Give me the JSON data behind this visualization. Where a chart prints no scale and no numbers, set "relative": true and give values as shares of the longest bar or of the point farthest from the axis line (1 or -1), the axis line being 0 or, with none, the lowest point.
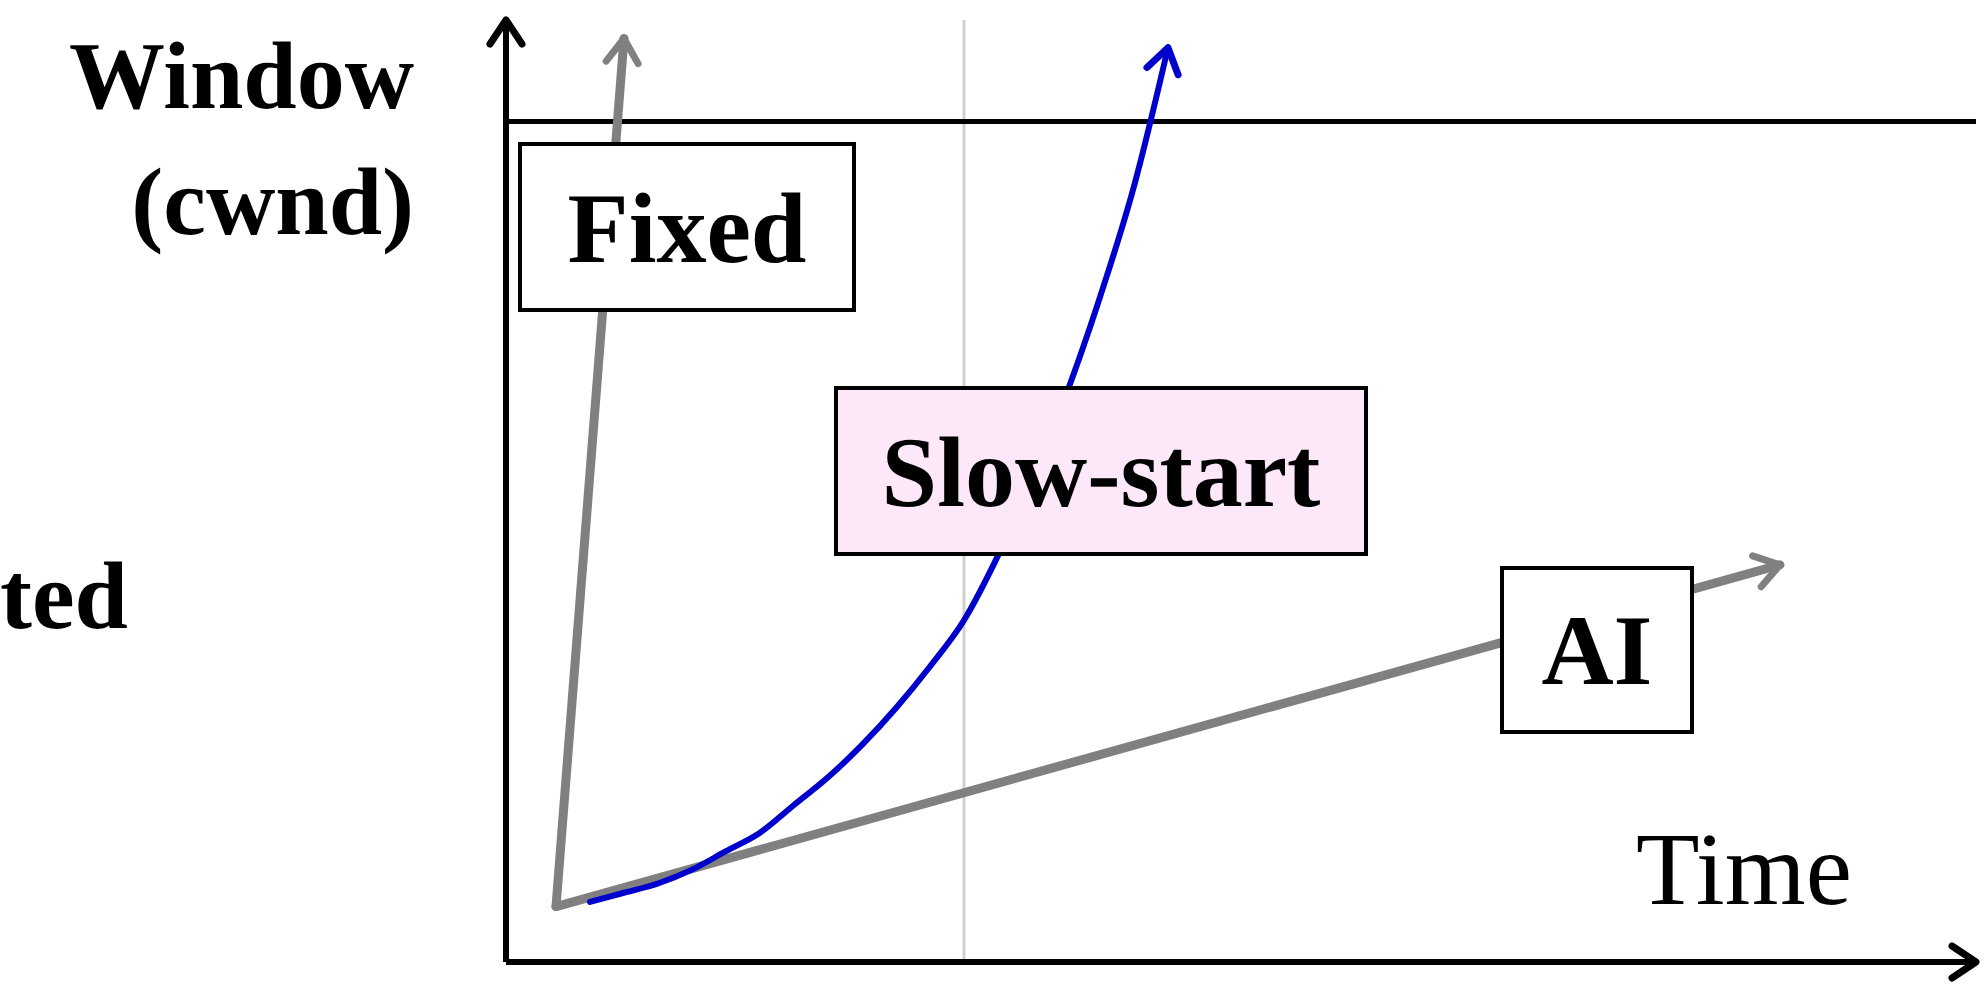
{
  "chart_data": {
    "type": "line",
    "relative": true,
    "ylabel": "Window (cwnd)",
    "xlabel": "Time",
    "annotations": [
      "ted"
    ],
    "categories": [
      null,
      null,
      null,
      null,
      null,
      null,
      null,
      null,
      null,
      null,
      null,
      null,
      null,
      null,
      null,
      null,
      null,
      null,
      null,
      null,
      null,
      null,
      null,
      null,
      null,
      null,
      null,
      null,
      null,
      null,
      null,
      null,
      null,
      null,
      null,
      null,
      null
    ],
    "series": [
      {
        "name": "Fixed",
        "color": "#808080",
        "values": [
          0.06,
          null,
          1,
          null,
          null,
          null,
          null,
          null,
          null,
          null,
          null,
          null,
          null,
          null,
          null,
          null,
          null,
          null,
          null,
          null,
          null,
          null,
          null,
          null,
          null,
          null,
          null,
          null,
          null,
          null,
          null,
          null,
          null,
          null,
          null,
          null,
          null
        ]
      },
      {
        "name": "AI",
        "color": "#808080",
        "values": [
          0.06,
          null,
          null,
          null,
          null,
          null,
          null,
          null,
          null,
          null,
          null,
          null,
          null,
          null,
          null,
          null,
          null,
          null,
          null,
          null,
          null,
          null,
          null,
          null,
          null,
          null,
          null,
          null,
          null,
          null,
          null,
          null,
          null,
          null,
          null,
          null,
          0.43
        ]
      },
      {
        "name": "Slow-start",
        "color": "#0000cc",
        "values": [
          null,
          0.065,
          0.075,
          0.085,
          0.1,
          0.12,
          0.14,
          0.17,
          0.2,
          0.235,
          0.275,
          0.32,
          0.37,
          0.44,
          null,
          null,
          0.72,
          0.84,
          0.99,
          null,
          null,
          null,
          null,
          null,
          null,
          null,
          null,
          null,
          null,
          null,
          null,
          null,
          null,
          null,
          null,
          null,
          null
        ]
      }
    ],
    "ref_lines": [
      {
        "axis": "y",
        "value": 0.91,
        "color": "#000000"
      }
    ],
    "marker": "none",
    "line_style": "solid"
  }
}
